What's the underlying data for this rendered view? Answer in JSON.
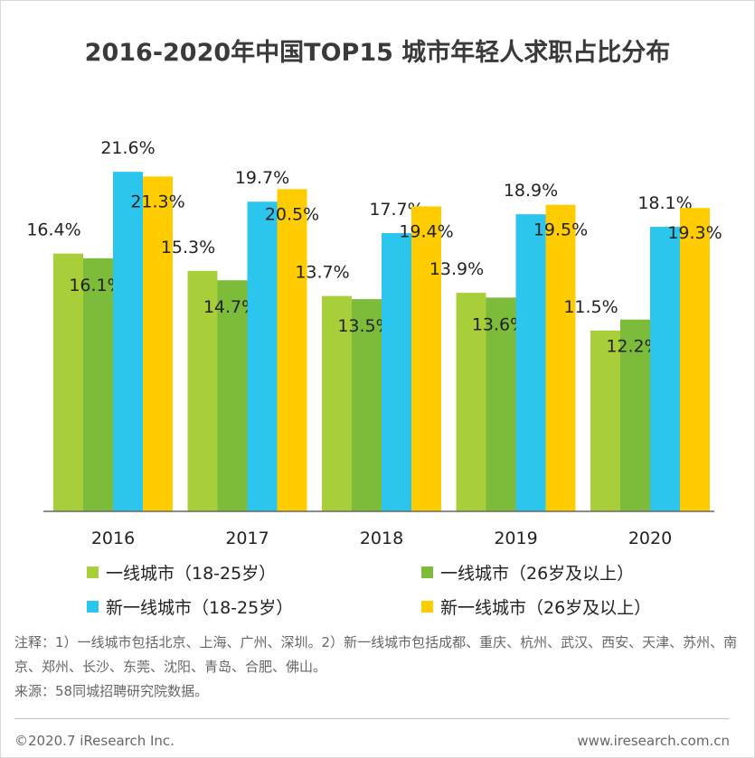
{
  "chart_data": {
    "type": "bar",
    "title": "2016-2020年中国TOP15 城市年轻人求职占比分布",
    "categories": [
      "2016",
      "2017",
      "2018",
      "2019",
      "2020"
    ],
    "series": [
      {
        "name": "一线城市（18-25岁）",
        "color": "#a8cf3a",
        "values": [
          16.4,
          15.3,
          13.7,
          13.9,
          11.5
        ],
        "labels": [
          "16.4%",
          "15.3%",
          "13.7%",
          "13.9%",
          "11.5%"
        ]
      },
      {
        "name": "一线城市（26岁及以上）",
        "color": "#7dbb3a",
        "values": [
          16.1,
          14.7,
          13.5,
          13.6,
          12.2
        ],
        "labels": [
          "16.1%",
          "14.7%",
          "13.5%",
          "13.6%",
          "12.2%"
        ]
      },
      {
        "name": "新一线城市（18-25岁）",
        "color": "#2cc5ee",
        "values": [
          21.6,
          19.7,
          17.7,
          18.9,
          18.1
        ],
        "labels": [
          "21.6%",
          "19.7%",
          "17.7%",
          "18.9%",
          "18.1%"
        ]
      },
      {
        "name": "新一线城市（26岁及以上）",
        "color": "#ffcc00",
        "values": [
          21.3,
          20.5,
          19.4,
          19.5,
          19.3
        ],
        "labels": [
          "21.3%",
          "20.5%",
          "19.4%",
          "19.5%",
          "19.3%"
        ]
      }
    ],
    "ylim": [
      0,
      25
    ],
    "xlabel": "",
    "ylabel": "",
    "grid": false,
    "legend_placement": "bottom"
  },
  "legend": {
    "items": [
      "一线城市（18-25岁）",
      "一线城市（26岁及以上）",
      "新一线城市（18-25岁）",
      "新一线城市（26岁及以上）"
    ]
  },
  "notes": {
    "line1": "注释：1）一线城市包括北京、上海、广州、深圳。2）新一线城市包括成都、重庆、杭州、武汉、西安、天津、苏州、南京、郑州、长沙、东莞、沈阳、青岛、合肥、佛山。",
    "source": "来源：58同城招聘研究院数据。"
  },
  "footer": {
    "copyright": "©2020.7 iResearch Inc.",
    "website": "www.iresearch.com.cn"
  }
}
